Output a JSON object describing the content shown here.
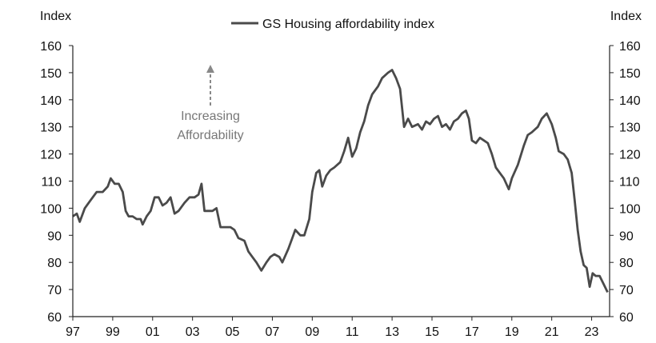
{
  "chart_data": {
    "type": "line",
    "title": "",
    "left_axis_label": "Index",
    "right_axis_label": "Index",
    "ylim": [
      60,
      160
    ],
    "yticks": [
      60,
      70,
      80,
      90,
      100,
      110,
      120,
      130,
      140,
      150,
      160
    ],
    "xlim": [
      1997.0,
      2023.9
    ],
    "xtick_values": [
      1997,
      1999,
      2001,
      2003,
      2005,
      2007,
      2009,
      2011,
      2013,
      2015,
      2017,
      2019,
      2021,
      2023
    ],
    "xtick_labels": [
      "97",
      "99",
      "01",
      "03",
      "05",
      "07",
      "09",
      "11",
      "13",
      "15",
      "17",
      "19",
      "21",
      "23"
    ],
    "grid": false,
    "legend_position": "top-center",
    "annotation": {
      "line1": "Increasing",
      "line2": "Affordability",
      "arrow": "up"
    },
    "line_color": "#4a4a4a",
    "series": [
      {
        "name": "GS Housing affordability index",
        "points": [
          [
            1997.0,
            97
          ],
          [
            1997.2,
            98
          ],
          [
            1997.35,
            95
          ],
          [
            1997.6,
            100
          ],
          [
            1997.9,
            103
          ],
          [
            1998.2,
            106
          ],
          [
            1998.5,
            106
          ],
          [
            1998.75,
            108
          ],
          [
            1998.9,
            111
          ],
          [
            1999.1,
            109
          ],
          [
            1999.3,
            109
          ],
          [
            1999.5,
            106
          ],
          [
            1999.65,
            99
          ],
          [
            1999.8,
            97
          ],
          [
            2000.0,
            97
          ],
          [
            2000.2,
            96
          ],
          [
            2000.4,
            96
          ],
          [
            2000.5,
            94
          ],
          [
            2000.7,
            97
          ],
          [
            2000.9,
            99
          ],
          [
            2001.1,
            104
          ],
          [
            2001.3,
            104
          ],
          [
            2001.5,
            101
          ],
          [
            2001.7,
            102
          ],
          [
            2001.9,
            104
          ],
          [
            2002.1,
            98
          ],
          [
            2002.3,
            99
          ],
          [
            2002.6,
            102
          ],
          [
            2002.85,
            104
          ],
          [
            2003.1,
            104
          ],
          [
            2003.3,
            105
          ],
          [
            2003.45,
            109
          ],
          [
            2003.6,
            99
          ],
          [
            2003.8,
            99
          ],
          [
            2004.0,
            99
          ],
          [
            2004.2,
            100
          ],
          [
            2004.4,
            93
          ],
          [
            2004.6,
            93
          ],
          [
            2004.9,
            93
          ],
          [
            2005.1,
            92
          ],
          [
            2005.3,
            89
          ],
          [
            2005.6,
            88
          ],
          [
            2005.8,
            84
          ],
          [
            2006.0,
            82
          ],
          [
            2006.2,
            80
          ],
          [
            2006.45,
            77
          ],
          [
            2006.7,
            80
          ],
          [
            2006.9,
            82
          ],
          [
            2007.1,
            83
          ],
          [
            2007.35,
            82
          ],
          [
            2007.5,
            80
          ],
          [
            2007.8,
            85
          ],
          [
            2008.0,
            89
          ],
          [
            2008.15,
            92
          ],
          [
            2008.4,
            90
          ],
          [
            2008.6,
            90
          ],
          [
            2008.85,
            96
          ],
          [
            2009.0,
            106
          ],
          [
            2009.2,
            113
          ],
          [
            2009.35,
            114
          ],
          [
            2009.5,
            108
          ],
          [
            2009.7,
            112
          ],
          [
            2009.9,
            114
          ],
          [
            2010.1,
            115
          ],
          [
            2010.4,
            117
          ],
          [
            2010.6,
            121
          ],
          [
            2010.8,
            126
          ],
          [
            2011.0,
            119
          ],
          [
            2011.2,
            122
          ],
          [
            2011.4,
            128
          ],
          [
            2011.6,
            132
          ],
          [
            2011.8,
            138
          ],
          [
            2012.0,
            142
          ],
          [
            2012.3,
            145
          ],
          [
            2012.5,
            148
          ],
          [
            2012.8,
            150
          ],
          [
            2013.0,
            151
          ],
          [
            2013.2,
            148
          ],
          [
            2013.4,
            144
          ],
          [
            2013.6,
            130
          ],
          [
            2013.8,
            133
          ],
          [
            2014.0,
            130
          ],
          [
            2014.3,
            131
          ],
          [
            2014.5,
            129
          ],
          [
            2014.7,
            132
          ],
          [
            2014.9,
            131
          ],
          [
            2015.1,
            133
          ],
          [
            2015.3,
            134
          ],
          [
            2015.5,
            130
          ],
          [
            2015.7,
            131
          ],
          [
            2015.9,
            129
          ],
          [
            2016.1,
            132
          ],
          [
            2016.3,
            133
          ],
          [
            2016.5,
            135
          ],
          [
            2016.7,
            136
          ],
          [
            2016.85,
            133
          ],
          [
            2017.0,
            125
          ],
          [
            2017.2,
            124
          ],
          [
            2017.4,
            126
          ],
          [
            2017.6,
            125
          ],
          [
            2017.8,
            124
          ],
          [
            2018.0,
            120
          ],
          [
            2018.2,
            115
          ],
          [
            2018.4,
            113
          ],
          [
            2018.6,
            111
          ],
          [
            2018.85,
            107
          ],
          [
            2019.0,
            111
          ],
          [
            2019.3,
            116
          ],
          [
            2019.6,
            123
          ],
          [
            2019.8,
            127
          ],
          [
            2020.0,
            128
          ],
          [
            2020.3,
            130
          ],
          [
            2020.5,
            133
          ],
          [
            2020.75,
            135
          ],
          [
            2021.0,
            131
          ],
          [
            2021.2,
            126
          ],
          [
            2021.35,
            121
          ],
          [
            2021.6,
            120
          ],
          [
            2021.8,
            118
          ],
          [
            2022.0,
            113
          ],
          [
            2022.15,
            103
          ],
          [
            2022.3,
            92
          ],
          [
            2022.45,
            84
          ],
          [
            2022.6,
            79
          ],
          [
            2022.75,
            78
          ],
          [
            2022.9,
            71
          ],
          [
            2023.05,
            76
          ],
          [
            2023.2,
            75
          ],
          [
            2023.4,
            75
          ],
          [
            2023.6,
            72
          ],
          [
            2023.8,
            69
          ]
        ]
      }
    ]
  }
}
